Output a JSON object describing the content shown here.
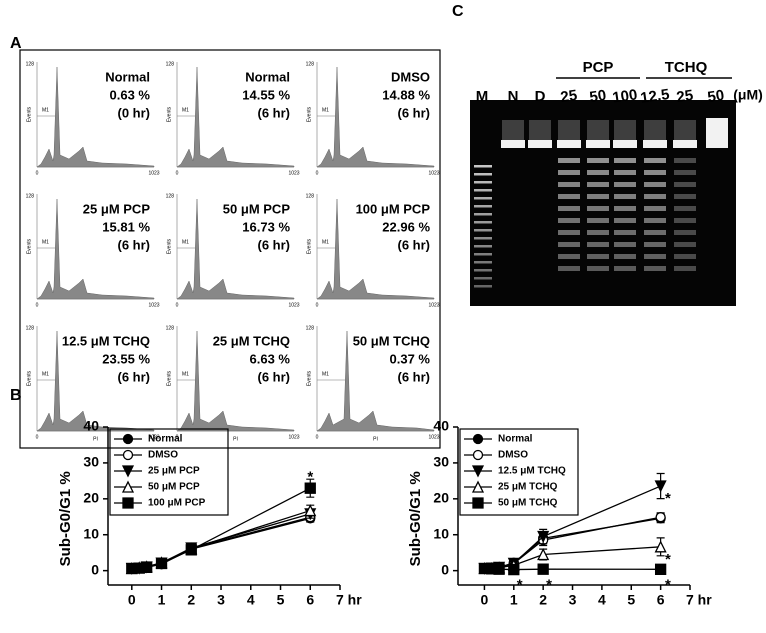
{
  "panel_labels": [
    "A",
    "B",
    "C"
  ],
  "histograms": {
    "axis": {
      "ymax": "128",
      "ylabel": "Events",
      "gate": "M1",
      "xmin": "0",
      "xmax": "1023",
      "xlabel": "PI"
    },
    "panels": [
      [
        "Normal",
        "0.63 %",
        "(0 hr)"
      ],
      [
        "Normal",
        "14.55 %",
        "(6 hr)"
      ],
      [
        "DMSO",
        "14.88 %",
        "(6 hr)"
      ],
      [
        "25 μM PCP",
        "15.81 %",
        "(6 hr)"
      ],
      [
        "50 μM PCP",
        "16.73 %",
        "(6 hr)"
      ],
      [
        "100 μM PCP",
        "22.96 %",
        "(6 hr)"
      ],
      [
        "12.5 μM TCHQ",
        "23.55 %",
        "(6 hr)"
      ],
      [
        "25 μM TCHQ",
        "6.63 %",
        "(6 hr)"
      ],
      [
        "50 μM TCHQ",
        "0.37 %",
        "(6 hr)"
      ]
    ]
  },
  "gel": {
    "groups": [
      "PCP",
      "TCHQ"
    ],
    "lanes": [
      "M",
      "N",
      "D",
      "25",
      "50",
      "100",
      "12.5",
      "25",
      "50"
    ],
    "unit": "(μM)"
  },
  "chart_data": [
    {
      "type": "line",
      "ylabel": "Sub-G0/G1 %",
      "x": [
        0,
        0.25,
        0.5,
        1,
        2,
        6
      ],
      "xlim": [
        -0.8,
        7
      ],
      "xticks": [
        0,
        1,
        2,
        3,
        4,
        5,
        6,
        {
          "value": 7,
          "label": "7 hr"
        }
      ],
      "ylim": [
        -4,
        40
      ],
      "yticks": [
        0,
        10,
        20,
        30,
        40
      ],
      "series": [
        {
          "name": "Normal",
          "color": "#000000",
          "marker": "circle-filled",
          "values": [
            0.63,
            0.7,
            0.9,
            1.8,
            6.0,
            14.55
          ],
          "errors": [
            0.3,
            0.3,
            0.3,
            0.5,
            0.8,
            1.0
          ]
        },
        {
          "name": "DMSO",
          "color": "#000000",
          "marker": "circle-open",
          "values": [
            0.6,
            0.8,
            1.0,
            2.0,
            6.2,
            14.88
          ],
          "errors": [
            0.3,
            0.3,
            0.3,
            0.5,
            0.8,
            1.0
          ]
        },
        {
          "name": "25 μM PCP",
          "color": "#000000",
          "marker": "triangle-down-filled",
          "values": [
            0.6,
            0.7,
            1.0,
            2.1,
            6.3,
            15.81
          ],
          "errors": [
            0.3,
            0.3,
            0.3,
            0.5,
            0.8,
            1.2
          ]
        },
        {
          "name": "50 μM PCP",
          "color": "#000000",
          "marker": "triangle-up-open",
          "values": [
            0.6,
            0.8,
            1.1,
            2.2,
            6.1,
            16.73
          ],
          "errors": [
            0.3,
            0.3,
            0.3,
            0.5,
            0.8,
            1.5
          ]
        },
        {
          "name": "100 μM PCP",
          "color": "#000000",
          "marker": "square-filled",
          "values": [
            0.6,
            0.7,
            0.9,
            2.0,
            5.8,
            22.96
          ],
          "errors": [
            0.3,
            0.3,
            0.3,
            0.5,
            0.8,
            2.5
          ]
        }
      ],
      "annotations": [
        {
          "text": "*",
          "x": 6,
          "y": 27
        }
      ]
    },
    {
      "type": "line",
      "ylabel": "Sub-G0/G1 %",
      "x": [
        0,
        0.25,
        0.5,
        1,
        2,
        6
      ],
      "xlim": [
        -0.9,
        7
      ],
      "xticks": [
        0,
        1,
        2,
        3,
        4,
        5,
        6,
        {
          "value": 7,
          "label": "7 hr"
        }
      ],
      "ylim": [
        -4,
        40
      ],
      "yticks": [
        0,
        10,
        20,
        30,
        40
      ],
      "series": [
        {
          "name": "Normal",
          "color": "#000000",
          "marker": "circle-filled",
          "values": [
            0.63,
            0.7,
            0.9,
            2.2,
            9.0,
            14.55
          ],
          "errors": [
            0.3,
            0.3,
            0.3,
            0.5,
            1.5,
            1.2
          ]
        },
        {
          "name": "DMSO",
          "color": "#000000",
          "marker": "circle-open",
          "values": [
            0.6,
            0.7,
            0.9,
            2.0,
            8.5,
            14.88
          ],
          "errors": [
            0.3,
            0.3,
            0.3,
            0.5,
            1.5,
            1.2
          ]
        },
        {
          "name": "12.5 μM TCHQ",
          "color": "#000000",
          "marker": "triangle-down-filled",
          "values": [
            0.6,
            0.7,
            0.9,
            2.0,
            9.5,
            23.55
          ],
          "errors": [
            0.3,
            0.3,
            0.3,
            0.5,
            2.0,
            3.5
          ]
        },
        {
          "name": "25 μM TCHQ",
          "color": "#000000",
          "marker": "triangle-up-open",
          "values": [
            0.6,
            0.6,
            0.8,
            1.5,
            4.5,
            6.63
          ],
          "errors": [
            0.3,
            0.3,
            0.3,
            0.5,
            1.5,
            2.5
          ]
        },
        {
          "name": "50 μM TCHQ",
          "color": "#000000",
          "marker": "square-filled",
          "values": [
            0.6,
            0.5,
            0.4,
            0.3,
            0.4,
            0.37
          ],
          "errors": [
            0.2,
            0.2,
            0.2,
            0.2,
            0.2,
            0.2
          ]
        }
      ],
      "annotations": [
        {
          "text": "*",
          "x": 6.25,
          "y": 21
        },
        {
          "text": "*",
          "x": 6.25,
          "y": 4
        },
        {
          "text": "*",
          "x": 6.25,
          "y": -3
        },
        {
          "text": "*",
          "x": 1.2,
          "y": -3
        },
        {
          "text": "*",
          "x": 2.2,
          "y": -3
        }
      ]
    }
  ]
}
